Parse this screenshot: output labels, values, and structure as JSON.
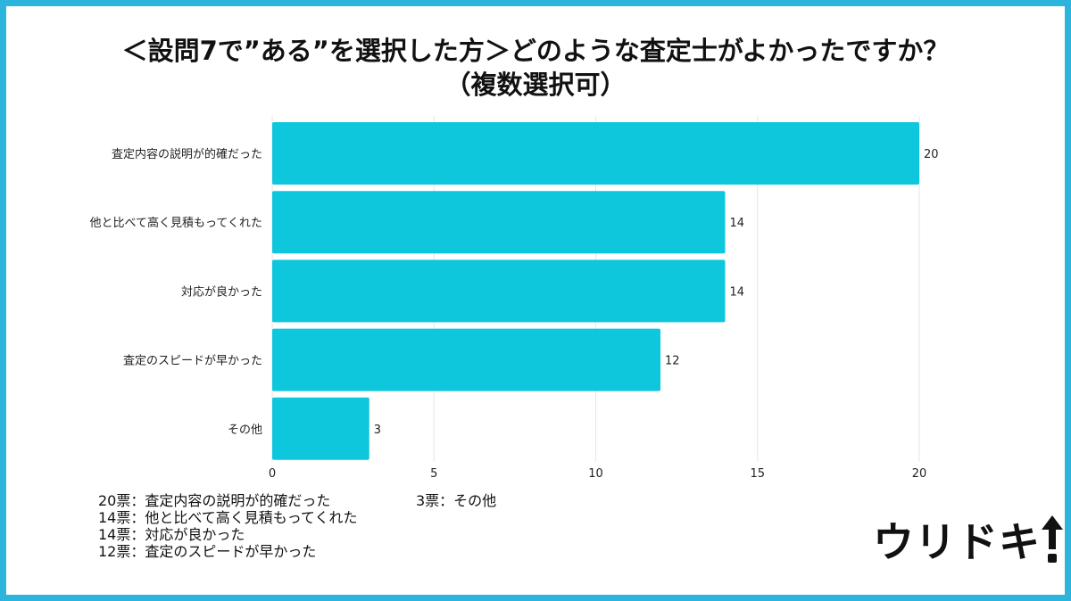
{
  "title_line1": "＜設問7で”ある”を選択した方＞どのような査定士がよかったですか？",
  "title_line2": "（複数選択可）",
  "colors": {
    "frame": "#2bb5dd",
    "bar": "#0fc7dc",
    "grid": "#e3e6ec"
  },
  "chart_data": {
    "type": "bar",
    "orientation": "horizontal",
    "categories": [
      "査定内容の説明が的確だった",
      "他と比べて高く見積もってくれた",
      "対応が良かった",
      "査定のスピードが早かった",
      "その他"
    ],
    "values": [
      20,
      14,
      14,
      12,
      3
    ],
    "xlim": [
      0,
      20
    ],
    "xticks": [
      0,
      5,
      10,
      15,
      20
    ],
    "grid": true,
    "legend": "none"
  },
  "summary_lines": [
    "20票：査定内容の説明が的確だった",
    "14票：他と比べて高く見積もってくれた",
    "14票：対応が良かった",
    "12票：査定のスピードが早かった"
  ],
  "summary_extra": "3票：その他",
  "logo": {
    "text": "ウリドキ",
    "icon": "upward-arrow-exclamation-icon"
  }
}
